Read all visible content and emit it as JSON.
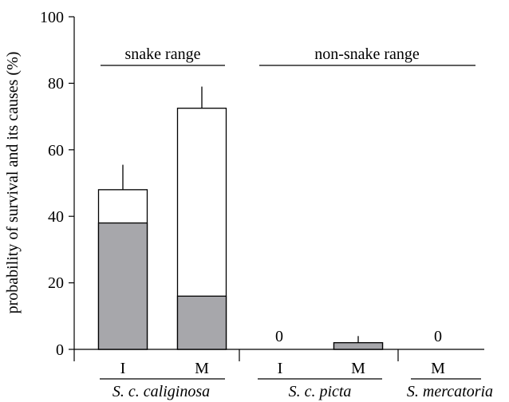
{
  "chart_data": {
    "type": "bar",
    "stacked": true,
    "ylabel": "probability of survival and its causes (%)",
    "ylim": [
      0,
      100
    ],
    "yticks": [
      "0",
      "20",
      "40",
      "60",
      "80",
      "100"
    ],
    "colors": {
      "lower": "#a7a7ab",
      "upper": "#ffffff",
      "stroke": "#000000"
    },
    "bars": [
      {
        "label": "I",
        "group": "S. c. caliginosa",
        "lower": 38,
        "total": 48,
        "error": 7.5
      },
      {
        "label": "M",
        "group": "S. c. caliginosa",
        "lower": 16,
        "total": 72.5,
        "error": 6.5
      },
      {
        "label": "I",
        "group": "S. c. picta",
        "lower": 0,
        "total": 0,
        "error": 0,
        "value_text": "0"
      },
      {
        "label": "M",
        "group": "S. c. picta",
        "lower": 2,
        "total": 2,
        "error": 2
      },
      {
        "label": "M",
        "group": "S. mercatoria",
        "lower": 0,
        "total": 0,
        "error": 0,
        "value_text": "0"
      }
    ],
    "groups": [
      "S. c. caliginosa",
      "S. c. picta",
      "S. mercatoria"
    ],
    "ranges": [
      {
        "label": "snake range"
      },
      {
        "label": "non-snake range"
      }
    ]
  }
}
